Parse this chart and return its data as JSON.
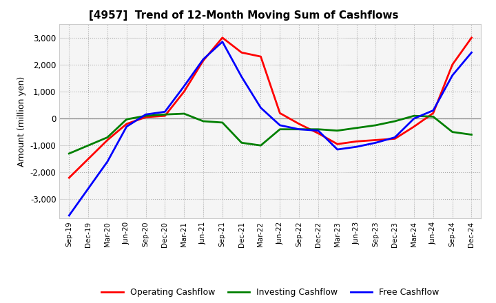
{
  "title": "[4957]  Trend of 12-Month Moving Sum of Cashflows",
  "ylabel": "Amount (million yen)",
  "ylim": [
    -3700,
    3500
  ],
  "yticks": [
    -3000,
    -2000,
    -1000,
    0,
    1000,
    2000,
    3000
  ],
  "background_color": "#ffffff",
  "plot_bg_color": "#f5f5f5",
  "x_labels": [
    "Sep-19",
    "Dec-19",
    "Mar-20",
    "Jun-20",
    "Sep-20",
    "Dec-20",
    "Mar-21",
    "Jun-21",
    "Sep-21",
    "Dec-21",
    "Mar-22",
    "Jun-22",
    "Sep-22",
    "Dec-22",
    "Mar-23",
    "Jun-23",
    "Sep-23",
    "Dec-23",
    "Mar-24",
    "Jun-24",
    "Sep-24",
    "Dec-24"
  ],
  "operating": [
    -2200,
    -1500,
    -800,
    -200,
    50,
    100,
    1000,
    2150,
    3000,
    2450,
    2300,
    200,
    -200,
    -550,
    -950,
    -850,
    -800,
    -750,
    -300,
    200,
    2000,
    3000
  ],
  "investing": [
    -1300,
    -1000,
    -700,
    -30,
    100,
    150,
    180,
    -100,
    -150,
    -900,
    -1000,
    -400,
    -400,
    -400,
    -450,
    -350,
    -250,
    -100,
    100,
    70,
    -500,
    -600
  ],
  "free": [
    -3600,
    -2600,
    -1600,
    -300,
    150,
    250,
    1200,
    2200,
    2850,
    1550,
    400,
    -250,
    -400,
    -450,
    -1150,
    -1050,
    -900,
    -700,
    0,
    300,
    1600,
    2450
  ],
  "operating_color": "#ff0000",
  "investing_color": "#008000",
  "free_color": "#0000ff",
  "line_width": 2.0,
  "grid_color": "#aaaaaa",
  "grid_style": ":",
  "zero_line_color": "#888888"
}
